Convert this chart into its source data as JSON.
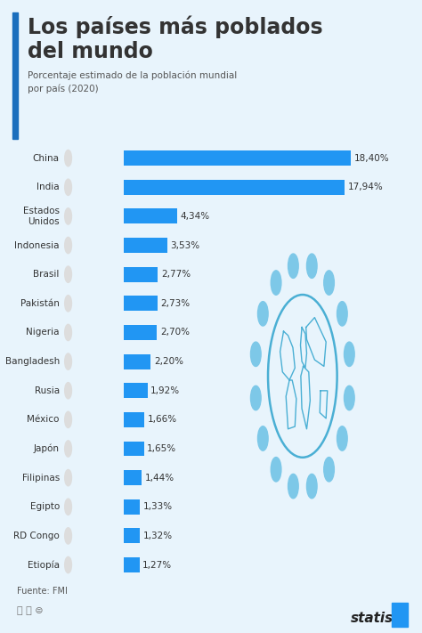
{
  "title_line1": "Los países más poblados",
  "title_line2": "del mundo",
  "subtitle": "Porcentaje estimado de la población mundial\npor país (2020)",
  "source": "Fuente: FMI",
  "bar_color": "#2196F3",
  "background_color": "#E8F4FC",
  "title_accent_color": "#1A6EBD",
  "categories": [
    "China",
    "India",
    "Estados\nUnidos",
    "Indonesia",
    "Brasil",
    "Pakistán",
    "Nigeria",
    "Bangladesh",
    "Rusia",
    "México",
    "Japón",
    "Filipinas",
    "Egipto",
    "RD Congo",
    "Etiopía"
  ],
  "values": [
    18.4,
    17.94,
    4.34,
    3.53,
    2.77,
    2.73,
    2.7,
    2.2,
    1.92,
    1.66,
    1.65,
    1.44,
    1.33,
    1.32,
    1.27
  ],
  "labels": [
    "18,40%",
    "17,94%",
    "4,34%",
    "3,53%",
    "2,77%",
    "2,73%",
    "2,70%",
    "2,20%",
    "1,92%",
    "1,66%",
    "1,65%",
    "1,44%",
    "1,33%",
    "1,32%",
    "1,27%"
  ],
  "max_value": 20.5,
  "text_color": "#333333",
  "subtitle_color": "#555555",
  "globe_dot_color": "#7DC8E8",
  "globe_line_color": "#4AAFD4",
  "title_fontsize": 17,
  "subtitle_fontsize": 7.5,
  "bar_label_fontsize": 7.5,
  "country_fontsize": 7.5,
  "source_fontsize": 7,
  "statista_fontsize": 11
}
